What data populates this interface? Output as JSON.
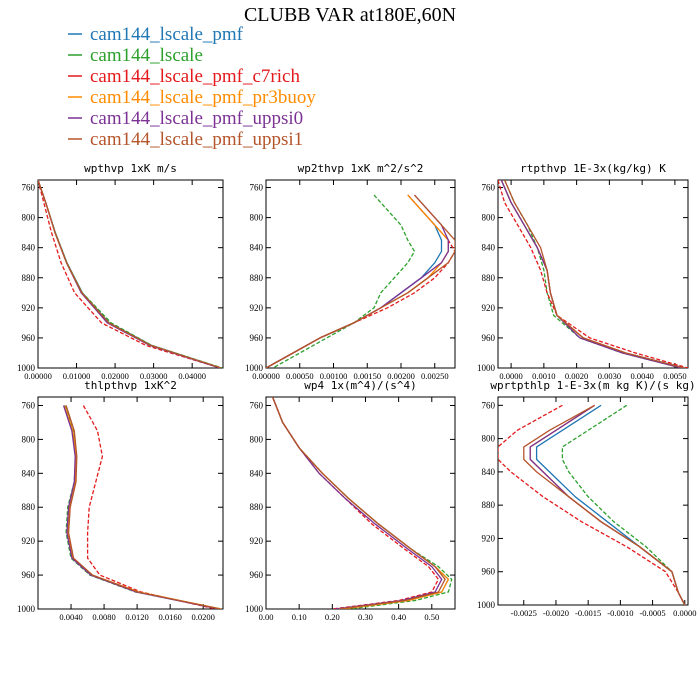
{
  "figure": {
    "title": "CLUBB VAR at180E,60N"
  },
  "legend": [
    {
      "name": "cam144_lscale_pmf",
      "color": "#1f77b4"
    },
    {
      "name": "cam144_lscale",
      "color": "#2ca02c"
    },
    {
      "name": "cam144_lscale_pmf_c7rich",
      "color": "#e41a1c"
    },
    {
      "name": "cam144_lscale_pmf_pr3buoy",
      "color": "#ff8c00"
    },
    {
      "name": "cam144_lscale_pmf_uppsi0",
      "color": "#7b3294"
    },
    {
      "name": "cam144_lscale_pmf_uppsi1",
      "color": "#b5552b"
    }
  ],
  "chart_data": [
    {
      "type": "line",
      "title": "wpthvp  1xK m/s",
      "ylim": [
        1000,
        750
      ],
      "yticks": [
        760,
        800,
        840,
        880,
        920,
        960,
        1000
      ],
      "xlim": [
        0,
        0.048
      ],
      "xticks": [
        0,
        0.01,
        0.02,
        0.03,
        0.04
      ],
      "xticklabels": [
        "0.00000",
        "0.01000",
        "0.02000",
        "0.03000",
        "0.04000"
      ],
      "y": [
        750,
        780,
        820,
        860,
        900,
        940,
        970,
        1000
      ],
      "series": [
        {
          "name": "cam144_lscale_pmf",
          "style": "solid",
          "values": [
            0.0,
            0.002,
            0.0045,
            0.0075,
            0.0115,
            0.0185,
            0.0295,
            0.0475
          ]
        },
        {
          "name": "cam144_lscale",
          "style": "dashed",
          "values": [
            0.0,
            0.002,
            0.0045,
            0.0075,
            0.0115,
            0.019,
            0.0295,
            0.0478
          ]
        },
        {
          "name": "cam144_lscale_pmf_c7rich",
          "style": "dashed",
          "values": [
            0.0,
            0.0015,
            0.0035,
            0.006,
            0.0095,
            0.0165,
            0.028,
            0.0473
          ]
        },
        {
          "name": "cam144_lscale_pmf_pr3buoy",
          "style": "solid",
          "values": [
            0.0,
            0.002,
            0.0044,
            0.0074,
            0.0113,
            0.0183,
            0.0292,
            0.0474
          ]
        },
        {
          "name": "cam144_lscale_pmf_uppsi0",
          "style": "solid",
          "values": [
            0.0,
            0.002,
            0.0044,
            0.0074,
            0.0112,
            0.018,
            0.029,
            0.0472
          ]
        },
        {
          "name": "cam144_lscale_pmf_uppsi1",
          "style": "solid",
          "values": [
            0.0,
            0.002,
            0.0044,
            0.0074,
            0.0114,
            0.0184,
            0.0293,
            0.0475
          ]
        }
      ]
    },
    {
      "type": "line",
      "title": "wp2thvp  1xK m^2/s^2",
      "ylim": [
        1000,
        750
      ],
      "yticks": [
        760,
        800,
        840,
        880,
        920,
        960,
        1000
      ],
      "xlim": [
        0,
        0.0028
      ],
      "xticks": [
        0,
        0.0005,
        0.001,
        0.0015,
        0.002,
        0.0025
      ],
      "xticklabels": [
        "0.00000",
        "0.00050",
        "0.00100",
        "0.00150",
        "0.00200",
        "0.00250"
      ],
      "y": [
        770,
        790,
        810,
        830,
        845,
        860,
        880,
        900,
        920,
        940,
        960,
        980,
        1000
      ],
      "series": [
        {
          "name": "cam144_lscale_pmf",
          "style": "solid",
          "values": [
            0.0021,
            0.0023,
            0.0025,
            0.0026,
            0.0026,
            0.0025,
            0.0023,
            0.002,
            0.0017,
            0.0013,
            0.0008,
            0.0004,
            0.0
          ]
        },
        {
          "name": "cam144_lscale",
          "style": "dashed",
          "values": [
            0.0016,
            0.0018,
            0.002,
            0.0021,
            0.0022,
            0.0021,
            0.0019,
            0.0017,
            0.0016,
            0.0013,
            0.0009,
            0.0005,
            0.0001
          ]
        },
        {
          "name": "cam144_lscale_pmf_c7rich",
          "style": "dashed",
          "values": [
            0.0021,
            0.0023,
            0.0025,
            0.0027,
            0.0028,
            0.0027,
            0.0025,
            0.0022,
            0.0018,
            0.0013,
            0.0008,
            0.0004,
            0.0
          ]
        },
        {
          "name": "cam144_lscale_pmf_pr3buoy",
          "style": "solid",
          "values": [
            0.0021,
            0.0023,
            0.0025,
            0.0027,
            0.0027,
            0.0026,
            0.0024,
            0.0021,
            0.0017,
            0.0013,
            0.0008,
            0.0004,
            0.0
          ]
        },
        {
          "name": "cam144_lscale_pmf_uppsi0",
          "style": "solid",
          "values": [
            0.0022,
            0.0024,
            0.0026,
            0.0027,
            0.0027,
            0.0026,
            0.0023,
            0.002,
            0.0017,
            0.0013,
            0.0008,
            0.0004,
            0.0
          ]
        },
        {
          "name": "cam144_lscale_pmf_uppsi1",
          "style": "solid",
          "values": [
            0.0022,
            0.0024,
            0.0026,
            0.0028,
            0.0028,
            0.0027,
            0.0024,
            0.0021,
            0.0017,
            0.0013,
            0.0008,
            0.0004,
            0.0
          ]
        }
      ]
    },
    {
      "type": "line",
      "title": "rtpthvp  1E-3x(kg/kg) K",
      "ylim": [
        1000,
        750
      ],
      "yticks": [
        760,
        800,
        840,
        880,
        920,
        960,
        1000
      ],
      "xlim": [
        -0.0004,
        0.0054
      ],
      "xticks": [
        0,
        0.001,
        0.002,
        0.003,
        0.004,
        0.005
      ],
      "xticklabels": [
        "0.0000",
        "0.0010",
        "0.0020",
        "0.0030",
        "0.0040",
        "0.0050"
      ],
      "y": [
        750,
        780,
        810,
        840,
        870,
        900,
        930,
        960,
        980,
        1000
      ],
      "series": [
        {
          "name": "cam144_lscale_pmf",
          "style": "solid",
          "values": [
            -0.0003,
            0.0,
            0.0004,
            0.0008,
            0.0011,
            0.0012,
            0.0014,
            0.0022,
            0.0035,
            0.0053
          ]
        },
        {
          "name": "cam144_lscale",
          "style": "dashed",
          "values": [
            -0.0002,
            0.0001,
            0.0005,
            0.0008,
            0.001,
            0.0011,
            0.0013,
            0.0021,
            0.0034,
            0.0052
          ]
        },
        {
          "name": "cam144_lscale_pmf_c7rich",
          "style": "dashed",
          "values": [
            -0.0004,
            -0.0002,
            0.0002,
            0.0006,
            0.0009,
            0.0011,
            0.0014,
            0.0024,
            0.0038,
            0.0054
          ]
        },
        {
          "name": "cam144_lscale_pmf_pr3buoy",
          "style": "solid",
          "values": [
            -0.0003,
            0.0,
            0.0004,
            0.0008,
            0.0011,
            0.0012,
            0.0014,
            0.0022,
            0.0035,
            0.0052
          ]
        },
        {
          "name": "cam144_lscale_pmf_uppsi0",
          "style": "solid",
          "values": [
            -0.0003,
            0.0,
            0.0004,
            0.0008,
            0.0011,
            0.0012,
            0.0014,
            0.0021,
            0.0034,
            0.0052
          ]
        },
        {
          "name": "cam144_lscale_pmf_uppsi1",
          "style": "solid",
          "values": [
            -0.0002,
            0.0001,
            0.0005,
            0.0009,
            0.0011,
            0.0012,
            0.0014,
            0.0022,
            0.0035,
            0.0053
          ]
        }
      ]
    },
    {
      "type": "line",
      "title": "thlpthvp  1xK^2",
      "ylim": [
        1000,
        750
      ],
      "yticks": [
        760,
        800,
        840,
        880,
        920,
        960,
        1000
      ],
      "xlim": [
        0,
        0.0224
      ],
      "xticks": [
        0.004,
        0.008,
        0.012,
        0.016,
        0.02
      ],
      "xticklabels": [
        "0.0040",
        "0.0080",
        "0.0120",
        "0.0160",
        "0.0200"
      ],
      "y": [
        760,
        790,
        820,
        850,
        880,
        910,
        940,
        960,
        980,
        1000
      ],
      "series": [
        {
          "name": "cam144_lscale_pmf",
          "style": "solid",
          "values": [
            0.0032,
            0.0042,
            0.0046,
            0.0045,
            0.0038,
            0.0036,
            0.0042,
            0.0065,
            0.012,
            0.022
          ]
        },
        {
          "name": "cam144_lscale",
          "style": "dashed",
          "values": [
            0.0033,
            0.0043,
            0.0046,
            0.0044,
            0.0036,
            0.0034,
            0.004,
            0.0063,
            0.0118,
            0.0222
          ]
        },
        {
          "name": "cam144_lscale_pmf_c7rich",
          "style": "dashed",
          "values": [
            0.0055,
            0.0072,
            0.0078,
            0.007,
            0.0062,
            0.006,
            0.006,
            0.0075,
            0.0125,
            0.0215
          ]
        },
        {
          "name": "cam144_lscale_pmf_pr3buoy",
          "style": "solid",
          "values": [
            0.0032,
            0.0042,
            0.0046,
            0.0045,
            0.0038,
            0.0036,
            0.0042,
            0.0066,
            0.0122,
            0.0222
          ]
        },
        {
          "name": "cam144_lscale_pmf_uppsi0",
          "style": "solid",
          "values": [
            0.0031,
            0.0041,
            0.0045,
            0.0044,
            0.0037,
            0.0035,
            0.0041,
            0.0064,
            0.0119,
            0.0219
          ]
        },
        {
          "name": "cam144_lscale_pmf_uppsi1",
          "style": "solid",
          "values": [
            0.0034,
            0.0044,
            0.0047,
            0.0046,
            0.0039,
            0.0037,
            0.0043,
            0.0066,
            0.0121,
            0.0221
          ]
        }
      ]
    },
    {
      "type": "line",
      "title": "wp4  1x(m^4)/(s^4)",
      "ylim": [
        1000,
        750
      ],
      "yticks": [
        760,
        800,
        840,
        880,
        920,
        960,
        1000
      ],
      "xlim": [
        0,
        0.57
      ],
      "xticks": [
        0,
        0.1,
        0.2,
        0.3,
        0.4,
        0.5
      ],
      "xticklabels": [
        "0.00",
        "0.10",
        "0.20",
        "0.30",
        "0.40",
        "0.50"
      ],
      "y": [
        750,
        780,
        810,
        840,
        870,
        900,
        930,
        950,
        965,
        980,
        990,
        1000
      ],
      "series": [
        {
          "name": "cam144_lscale_pmf",
          "style": "solid",
          "values": [
            0.02,
            0.05,
            0.1,
            0.17,
            0.25,
            0.34,
            0.44,
            0.51,
            0.55,
            0.53,
            0.42,
            0.22
          ]
        },
        {
          "name": "cam144_lscale",
          "style": "dashed",
          "values": [
            0.02,
            0.05,
            0.1,
            0.17,
            0.25,
            0.34,
            0.44,
            0.52,
            0.56,
            0.55,
            0.45,
            0.25
          ]
        },
        {
          "name": "cam144_lscale_pmf_c7rich",
          "style": "dashed",
          "values": [
            0.02,
            0.05,
            0.1,
            0.16,
            0.24,
            0.32,
            0.42,
            0.49,
            0.52,
            0.5,
            0.4,
            0.2
          ]
        },
        {
          "name": "cam144_lscale_pmf_pr3buoy",
          "style": "solid",
          "values": [
            0.02,
            0.05,
            0.1,
            0.17,
            0.25,
            0.34,
            0.44,
            0.51,
            0.55,
            0.53,
            0.43,
            0.23
          ]
        },
        {
          "name": "cam144_lscale_pmf_uppsi0",
          "style": "solid",
          "values": [
            0.02,
            0.05,
            0.1,
            0.16,
            0.24,
            0.33,
            0.43,
            0.5,
            0.53,
            0.51,
            0.41,
            0.21
          ]
        },
        {
          "name": "cam144_lscale_pmf_uppsi1",
          "style": "solid",
          "values": [
            0.02,
            0.05,
            0.1,
            0.17,
            0.25,
            0.34,
            0.44,
            0.51,
            0.54,
            0.52,
            0.42,
            0.22
          ]
        }
      ]
    },
    {
      "type": "line",
      "title": "wprtpthlp  1-E-3x(m kg K)/(s kg)",
      "ylim": [
        1000,
        750
      ],
      "yticks": [
        760,
        800,
        840,
        880,
        920,
        960,
        1000
      ],
      "xlim": [
        -0.0029,
        5e-05
      ],
      "xticks": [
        -0.0025,
        -0.002,
        -0.0015,
        -0.001,
        -0.0005,
        0
      ],
      "xticklabels": [
        "-0.0025",
        "-0.0020",
        "-0.0015",
        "-0.0010",
        "-0.0005",
        "0.0000"
      ],
      "y": [
        760,
        790,
        810,
        825,
        840,
        870,
        900,
        930,
        960,
        985,
        1000
      ],
      "series": [
        {
          "name": "cam144_lscale_pmf",
          "style": "solid",
          "values": [
            -0.0013,
            -0.0019,
            -0.0023,
            -0.0023,
            -0.0021,
            -0.0017,
            -0.0012,
            -0.0007,
            -0.0002,
            -0.0001,
            0.0
          ]
        },
        {
          "name": "cam144_lscale",
          "style": "dashed",
          "values": [
            -0.0009,
            -0.0015,
            -0.0019,
            -0.0019,
            -0.0018,
            -0.0015,
            -0.0011,
            -0.0006,
            -0.0002,
            -0.0001,
            0.0
          ]
        },
        {
          "name": "cam144_lscale_pmf_c7rich",
          "style": "dashed",
          "values": [
            -0.0019,
            -0.0026,
            -0.0029,
            -0.0029,
            -0.0027,
            -0.0022,
            -0.0016,
            -0.0009,
            -0.0003,
            -0.0001,
            0.0
          ]
        },
        {
          "name": "cam144_lscale_pmf_pr3buoy",
          "style": "solid",
          "values": [
            -0.0014,
            -0.002,
            -0.0024,
            -0.0024,
            -0.0022,
            -0.0018,
            -0.0013,
            -0.0007,
            -0.0002,
            -0.0001,
            0.0
          ]
        },
        {
          "name": "cam144_lscale_pmf_uppsi0",
          "style": "solid",
          "values": [
            -0.0014,
            -0.002,
            -0.0024,
            -0.0024,
            -0.0022,
            -0.0018,
            -0.0013,
            -0.0007,
            -0.0002,
            -0.0001,
            0.0
          ]
        },
        {
          "name": "cam144_lscale_pmf_uppsi1",
          "style": "solid",
          "values": [
            -0.0014,
            -0.0021,
            -0.0025,
            -0.0025,
            -0.0023,
            -0.0018,
            -0.0013,
            -0.0007,
            -0.0002,
            -0.0001,
            0.0
          ]
        }
      ]
    }
  ]
}
